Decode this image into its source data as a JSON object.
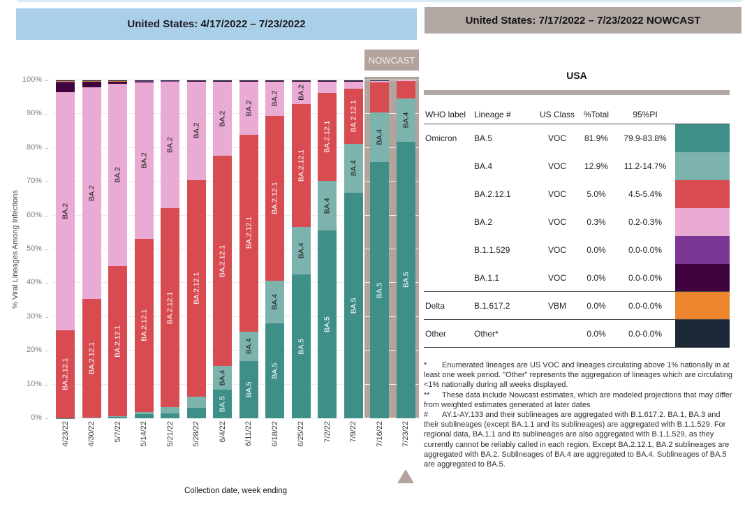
{
  "left_panel": {
    "title": "United States: 4/17/2022 – 7/23/2022",
    "nowcast_label": "NOWCAST",
    "xaxis_title": "Collection date, week ending",
    "yaxis_title": "% Viral Lineages Among Infections"
  },
  "right_panel": {
    "title": "United States: 7/17/2022 – 7/23/2022 NOWCAST",
    "region_label": "USA",
    "table": {
      "headers": [
        "WHO label",
        "Lineage #",
        "US Class",
        "%Total",
        "95%PI"
      ],
      "rows": [
        {
          "who": "Omicron",
          "lineage": "BA.5",
          "us_class": "VOC",
          "total": "81.9%",
          "pi": "79.9-83.8%",
          "color": "#3f8f89",
          "separator_below": false
        },
        {
          "who": "",
          "lineage": "BA.4",
          "us_class": "VOC",
          "total": "12.9%",
          "pi": "11.2-14.7%",
          "color": "#7cb3ac",
          "separator_below": false
        },
        {
          "who": "",
          "lineage": "BA.2.12.1",
          "us_class": "VOC",
          "total": "5.0%",
          "pi": "4.5-5.4%",
          "color": "#d74b51",
          "separator_below": false
        },
        {
          "who": "",
          "lineage": "BA.2",
          "us_class": "VOC",
          "total": "0.3%",
          "pi": "0.2-0.3%",
          "color": "#e9aad3",
          "separator_below": false
        },
        {
          "who": "",
          "lineage": "B.1.1.529",
          "us_class": "VOC",
          "total": "0.0%",
          "pi": "0.0-0.0%",
          "color": "#7b3794",
          "separator_below": false
        },
        {
          "who": "",
          "lineage": "BA.1.1",
          "us_class": "VOC",
          "total": "0.0%",
          "pi": "0.0-0.0%",
          "color": "#3f0340",
          "separator_below": true
        },
        {
          "who": "Delta",
          "lineage": "B.1.617.2",
          "us_class": "VBM",
          "total": "0.0%",
          "pi": "0.0-0.0%",
          "color": "#ec852e",
          "separator_below": true
        },
        {
          "who": "Other",
          "lineage": "Other*",
          "us_class": "",
          "total": "0.0%",
          "pi": "0.0-0.0%",
          "color": "#1b2838",
          "separator_below": true
        }
      ]
    },
    "footnotes": [
      {
        "marker": "*",
        "text": "Enumerated lineages are US VOC and lineages circulating above 1% nationally in at least one week period. \"Other\" represents the aggregation of lineages which are circulating <1% nationally during all weeks displayed."
      },
      {
        "marker": "**",
        "text": "These data include Nowcast estimates, which are modeled projections that may differ from weighted estimates generated at later dates"
      },
      {
        "marker": "#",
        "text": "AY.1-AY.133 and their sublineages are aggregated with B.1.617.2. BA.1, BA.3 and their sublineages (except BA.1.1 and its sublineages) are aggregated with B.1.1.529. For regional data, BA.1.1 and its sublineages are also aggregated with B.1.1.529, as they currently cannot be reliably called in each region. Except BA.2.12.1, BA.2 sublineages are aggregated with BA.2. Sublineages of BA.4 are aggregated to BA.4. Sublineages of BA.5 are aggregated to BA.5."
      }
    ]
  },
  "chart_data": {
    "type": "bar",
    "stacked": true,
    "title": "United States: 4/17/2022 – 7/23/2022",
    "xlabel": "Collection date, week ending",
    "ylabel": "% Viral Lineages Among Infections",
    "ylim": [
      0,
      100
    ],
    "ytick_labels": [
      "0%",
      "10%",
      "20%",
      "30%",
      "40%",
      "50%",
      "60%",
      "70%",
      "80%",
      "90%",
      "100%"
    ],
    "grid": true,
    "categories": [
      "4/23/22",
      "4/30/22",
      "5/7/22",
      "5/14/22",
      "5/21/22",
      "5/28/22",
      "6/4/22",
      "6/11/22",
      "6/18/22",
      "6/25/22",
      "7/2/22",
      "7/9/22",
      "7/16/22",
      "7/23/22"
    ],
    "nowcast_categories": [
      "7/16/22",
      "7/23/22"
    ],
    "series": [
      {
        "name": "BA.5",
        "color": "#3f8f89",
        "label_color": "#ffffff",
        "values": [
          0.1,
          0.2,
          0.4,
          1.2,
          1.5,
          3.2,
          8.5,
          17.0,
          28.2,
          42.5,
          55.6,
          66.8,
          75.9,
          81.9
        ]
      },
      {
        "name": "BA.4",
        "color": "#7cb3ac",
        "label_color": "#1a1a1a",
        "values": [
          0.0,
          0.1,
          0.2,
          0.7,
          1.8,
          3.3,
          6.9,
          8.7,
          12.5,
          14.1,
          14.7,
          14.5,
          14.6,
          12.9
        ]
      },
      {
        "name": "BA.2.12.1",
        "color": "#d74b51",
        "label_color": "#ffffff",
        "values": [
          26.0,
          35.1,
          44.4,
          51.2,
          58.9,
          64.0,
          62.2,
          58.1,
          48.7,
          36.4,
          26.0,
          16.2,
          8.9,
          5.0
        ]
      },
      {
        "name": "BA.2",
        "color": "#e9aad3",
        "label_color": "#1a1a1a",
        "values": [
          70.4,
          62.6,
          53.9,
          46.3,
          37.4,
          29.2,
          22.2,
          16.0,
          10.4,
          6.8,
          3.5,
          2.3,
          0.5,
          0.3
        ]
      },
      {
        "name": "BA.1.1",
        "color": "#3f0340",
        "label_color": "#ffffff",
        "values": [
          2.9,
          1.6,
          0.8,
          0.4,
          0.2,
          0.2,
          0.1,
          0.1,
          0.1,
          0.1,
          0.1,
          0.1,
          0.0,
          0.0
        ]
      },
      {
        "name": "B.1.1.529",
        "color": "#7b3794",
        "label_color": "#ffffff",
        "values": [
          0.3,
          0.2,
          0.1,
          0.1,
          0.1,
          0.0,
          0.0,
          0.0,
          0.0,
          0.0,
          0.0,
          0.0,
          0.0,
          0.0
        ]
      },
      {
        "name": "B.1.617.2",
        "color": "#ec852e",
        "label_color": "#1a1a1a",
        "values": [
          0.1,
          0.1,
          0.1,
          0.0,
          0.0,
          0.0,
          0.0,
          0.0,
          0.0,
          0.0,
          0.0,
          0.0,
          0.0,
          0.0
        ]
      },
      {
        "name": "Other",
        "color": "#1b2838",
        "label_color": "#ffffff",
        "values": [
          0.2,
          0.1,
          0.1,
          0.1,
          0.1,
          0.1,
          0.1,
          0.1,
          0.1,
          0.1,
          0.1,
          0.1,
          0.1,
          0.0
        ]
      }
    ],
    "nowcast_accent_color": "#b2a49d",
    "header_blue": "#a9cfe9",
    "header_taupe": "#b2a8a3"
  }
}
